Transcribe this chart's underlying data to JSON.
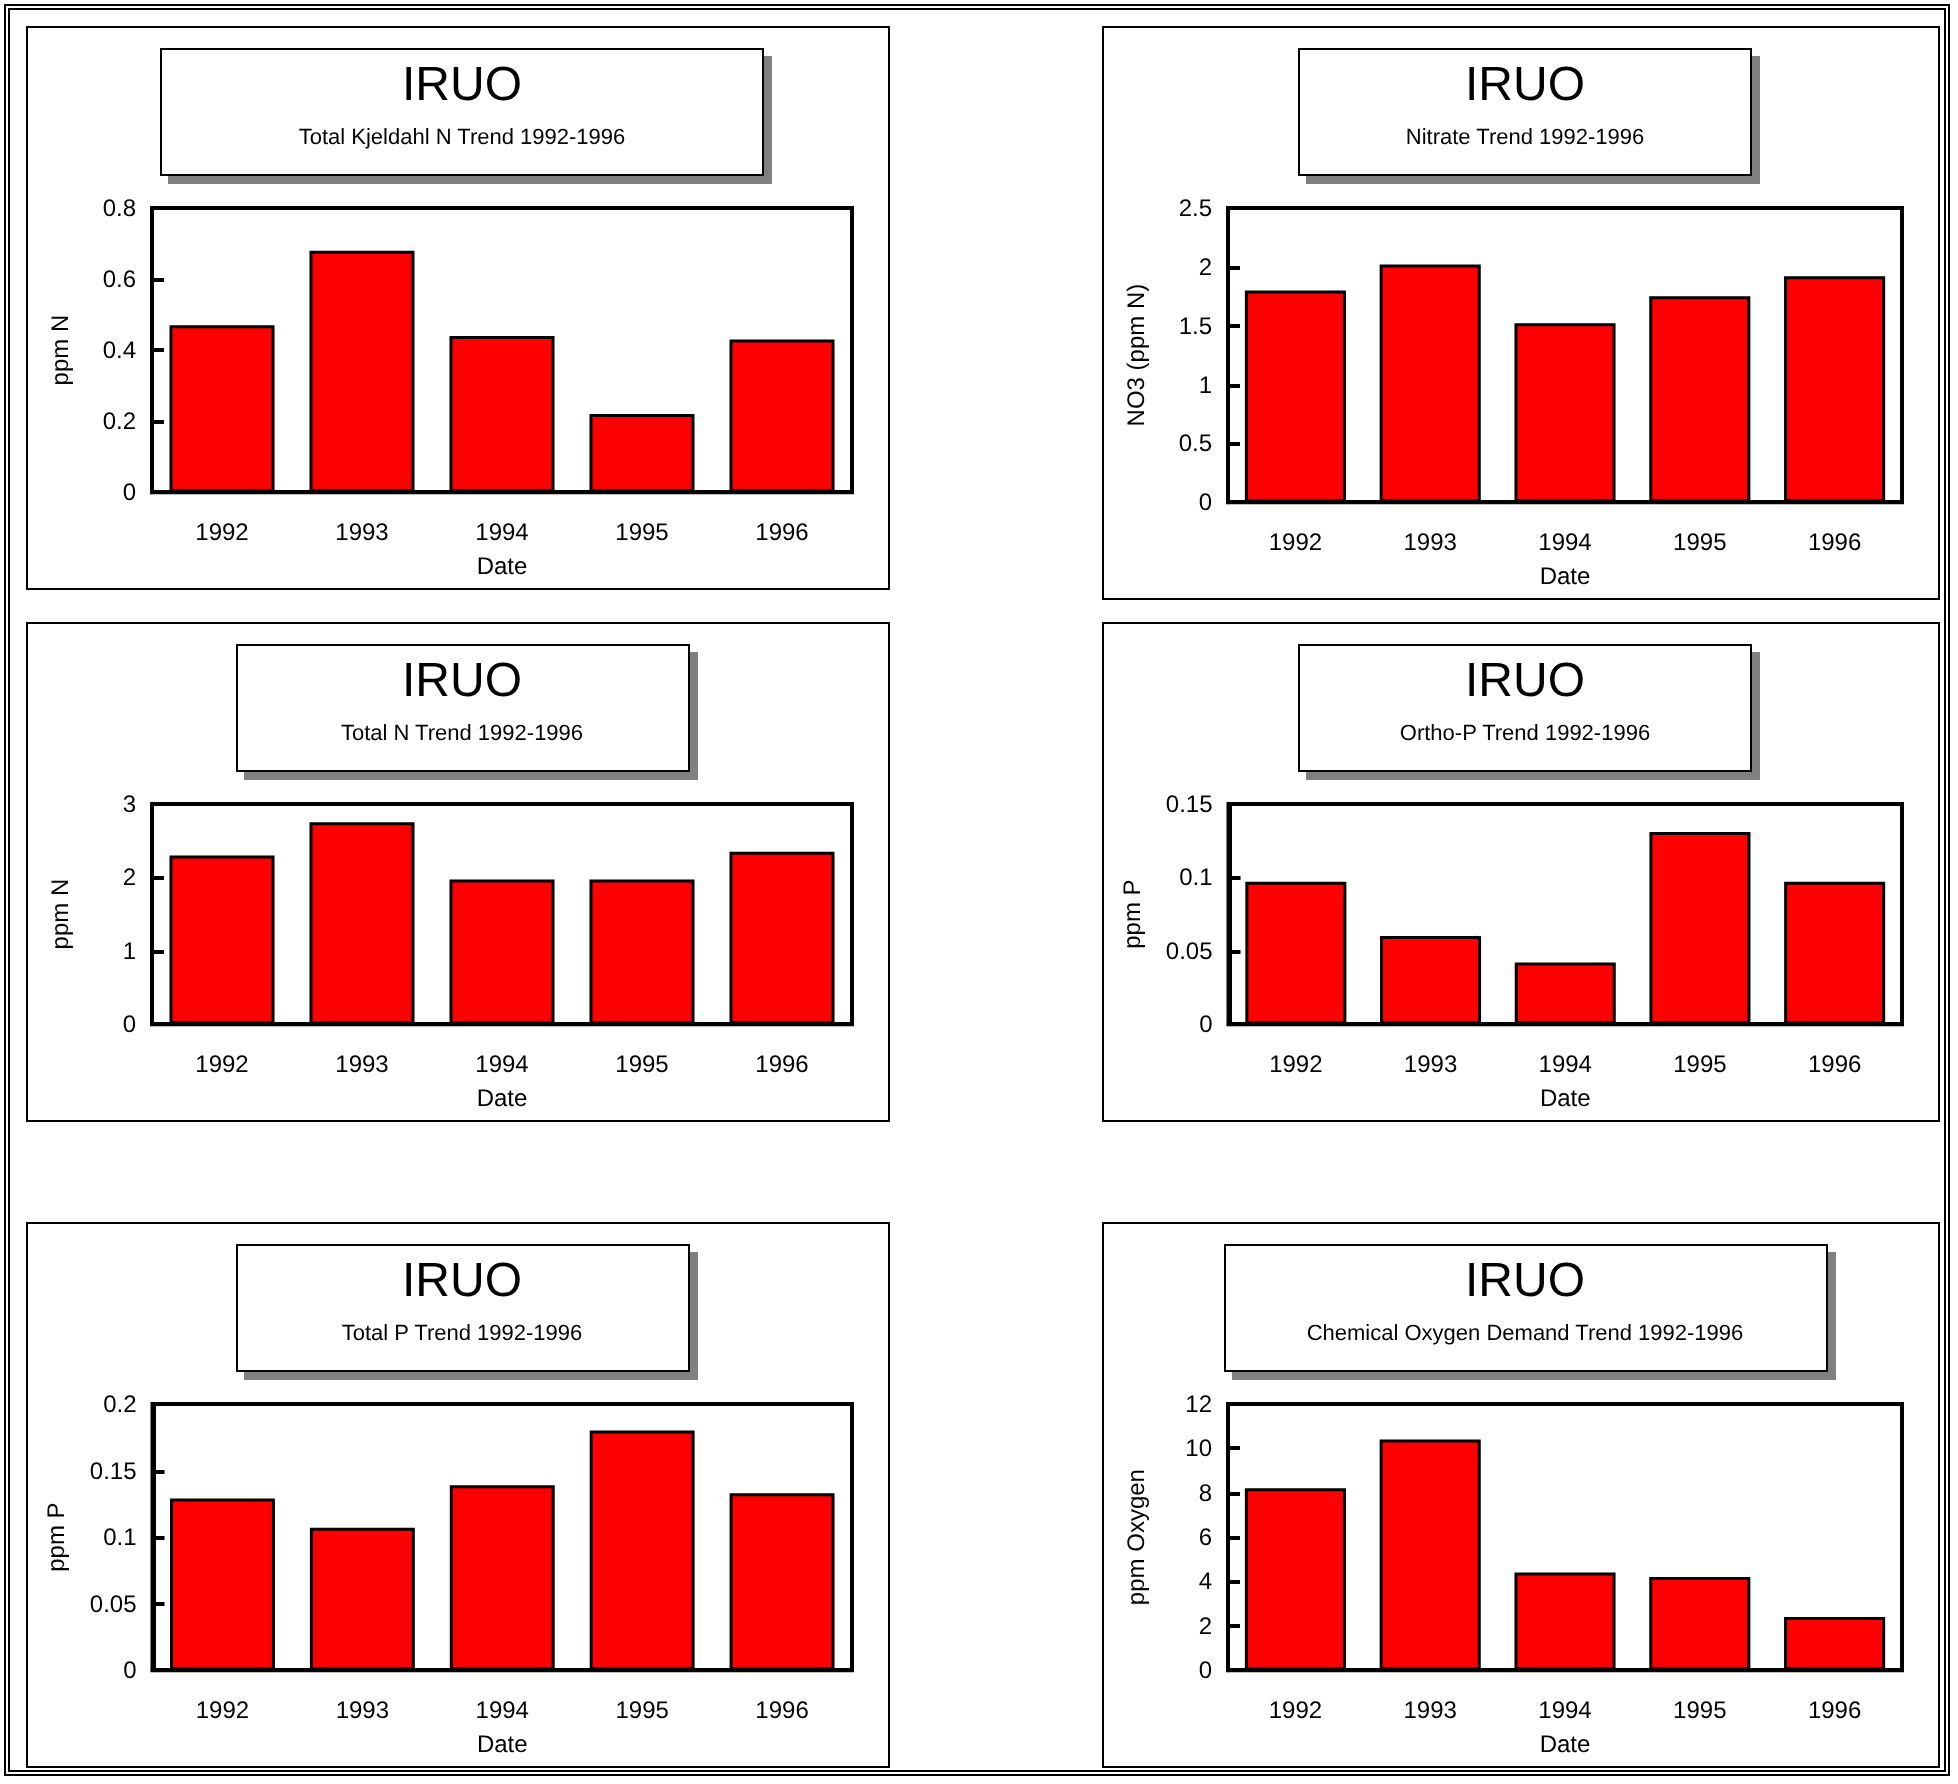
{
  "chart_data": [
    {
      "type": "bar",
      "title": "IRUO",
      "subtitle": "Total Kjeldahl N Trend 1992-1996",
      "xlabel": "Date",
      "ylabel": "ppm N",
      "categories": [
        "1992",
        "1993",
        "1994",
        "1995",
        "1996"
      ],
      "values": [
        0.47,
        0.68,
        0.44,
        0.22,
        0.43
      ],
      "color": "#ff0000",
      "ylim": [
        0,
        0.8
      ],
      "yticks": [
        0,
        0.2,
        0.4,
        0.6,
        0.8
      ],
      "grid": false
    },
    {
      "type": "bar",
      "title": "IRUO",
      "subtitle": "Nitrate Trend 1992-1996",
      "xlabel": "Date",
      "ylabel": "NO3 (ppm N)",
      "categories": [
        "1992",
        "1993",
        "1994",
        "1995",
        "1996"
      ],
      "values": [
        1.8,
        2.02,
        1.52,
        1.75,
        1.92
      ],
      "color": "#ff0000",
      "ylim": [
        0,
        2.5
      ],
      "yticks": [
        0,
        0.5,
        1,
        1.5,
        2,
        2.5
      ],
      "grid": false
    },
    {
      "type": "bar",
      "title": "IRUO",
      "subtitle": "Total N Trend 1992-1996",
      "xlabel": "Date",
      "ylabel": "ppm N",
      "categories": [
        "1992",
        "1993",
        "1994",
        "1995",
        "1996"
      ],
      "values": [
        2.3,
        2.75,
        1.97,
        1.97,
        2.35
      ],
      "color": "#ff0000",
      "ylim": [
        0,
        3
      ],
      "yticks": [
        0,
        1,
        2,
        3
      ],
      "grid": false
    },
    {
      "type": "bar",
      "title": "IRUO",
      "subtitle": "Ortho-P  Trend 1992-1996",
      "xlabel": "Date",
      "ylabel": "ppm P",
      "categories": [
        "1992",
        "1993",
        "1994",
        "1995",
        "1996"
      ],
      "values": [
        0.097,
        0.06,
        0.042,
        0.131,
        0.097
      ],
      "color": "#ff0000",
      "ylim": [
        0,
        0.15
      ],
      "yticks": [
        0,
        0.05,
        0.1,
        0.15
      ],
      "grid": false
    },
    {
      "type": "bar",
      "title": "IRUO",
      "subtitle": "Total P  Trend 1992-1996",
      "xlabel": "Date",
      "ylabel": "ppm P",
      "categories": [
        "1992",
        "1993",
        "1994",
        "1995",
        "1996"
      ],
      "values": [
        0.129,
        0.107,
        0.139,
        0.18,
        0.133
      ],
      "color": "#ff0000",
      "ylim": [
        0,
        0.2
      ],
      "yticks": [
        0,
        0.05,
        0.1,
        0.15,
        0.2
      ],
      "grid": false
    },
    {
      "type": "bar",
      "title": "IRUO",
      "subtitle": "Chemical Oxygen Demand Trend 1992-1996",
      "xlabel": "Date",
      "ylabel": "ppm Oxygen",
      "categories": [
        "1992",
        "1993",
        "1994",
        "1995",
        "1996"
      ],
      "values": [
        8.2,
        10.4,
        4.4,
        4.2,
        2.4
      ],
      "color": "#ff0000",
      "ylim": [
        0,
        12
      ],
      "yticks": [
        0,
        2,
        4,
        6,
        8,
        10,
        12
      ],
      "grid": false
    }
  ]
}
